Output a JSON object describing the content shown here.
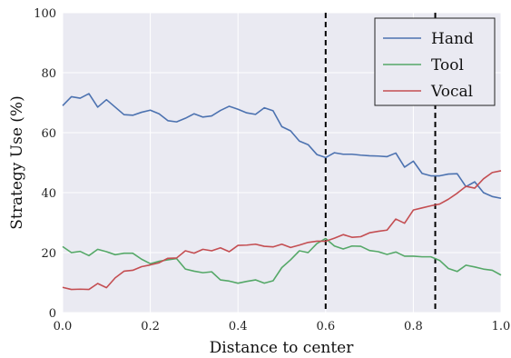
{
  "chart_data": {
    "type": "line",
    "title": "",
    "xlabel": "Distance to center",
    "ylabel": "Strategy Use (%)",
    "xlim": [
      0,
      1
    ],
    "ylim": [
      0,
      100
    ],
    "xticks": [
      "0.0",
      "0.2",
      "0.4",
      "0.6",
      "0.8",
      "1.0"
    ],
    "yticks": [
      "0",
      "20",
      "40",
      "60",
      "80",
      "100"
    ],
    "grid": true,
    "legend_position": "top-right",
    "background": "#eaeaf2",
    "vlines": [
      0.6,
      0.85
    ],
    "x": [
      0.0,
      0.02,
      0.04,
      0.06,
      0.08,
      0.1,
      0.12,
      0.14,
      0.16,
      0.18,
      0.2,
      0.22,
      0.24,
      0.26,
      0.28,
      0.3,
      0.32,
      0.34,
      0.36,
      0.38,
      0.4,
      0.42,
      0.44,
      0.46,
      0.48,
      0.5,
      0.52,
      0.54,
      0.56,
      0.58,
      0.6,
      0.62,
      0.64,
      0.66,
      0.68,
      0.7,
      0.72,
      0.74,
      0.76,
      0.78,
      0.8,
      0.82,
      0.84,
      0.86,
      0.88,
      0.9,
      0.92,
      0.94,
      0.96,
      0.98,
      1.0
    ],
    "series": [
      {
        "name": "Hand",
        "color": "#4c72b0",
        "values": [
          69,
          72,
          71.5,
          73,
          68.5,
          71,
          68.5,
          66,
          65.8,
          66.8,
          67.5,
          66.3,
          64,
          63.6,
          64.8,
          66.3,
          65.2,
          65.6,
          67.4,
          68.8,
          67.8,
          66.6,
          66.1,
          68.3,
          67.3,
          62,
          60.6,
          57.2,
          56,
          52.7,
          51.7,
          53.3,
          52.8,
          52.8,
          52.5,
          52.3,
          52.2,
          52,
          53.2,
          48.5,
          50.5,
          46.4,
          45.6,
          45.6,
          46.2,
          46.3,
          42,
          43.6,
          40,
          38.7,
          38.1
        ]
      },
      {
        "name": "Tool",
        "color": "#55a868",
        "values": [
          22,
          20,
          20.4,
          19,
          21.1,
          20.3,
          19.3,
          19.8,
          19.8,
          17.8,
          16.3,
          17.1,
          17.6,
          18,
          14.5,
          13.8,
          13.3,
          13.6,
          10.9,
          10.5,
          9.8,
          10.4,
          10.9,
          9.8,
          10.6,
          15,
          17.6,
          20.6,
          20,
          23,
          24.7,
          22.2,
          21.2,
          22.2,
          22.1,
          20.7,
          20.3,
          19.4,
          20.2,
          18.8,
          18.8,
          18.6,
          18.6,
          17.4,
          14.7,
          13.7,
          15.8,
          15.2,
          14.5,
          14.1,
          12.5
        ]
      },
      {
        "name": "Vocal",
        "color": "#c44e52",
        "values": [
          8.4,
          7.7,
          7.8,
          7.7,
          9.7,
          8.3,
          11.6,
          13.8,
          14.1,
          15.3,
          15.9,
          16.6,
          18.1,
          18.2,
          20.6,
          19.8,
          21.1,
          20.6,
          21.6,
          20.3,
          22.4,
          22.5,
          22.8,
          22.1,
          21.9,
          22.8,
          21.7,
          22.5,
          23.4,
          23.8,
          23.8,
          24.8,
          26,
          25.1,
          25.3,
          26.6,
          27.1,
          27.5,
          31.2,
          29.8,
          34.2,
          34.9,
          35.6,
          36.2,
          37.8,
          39.8,
          42.1,
          41.5,
          44.6,
          46.7,
          47.3
        ]
      }
    ]
  }
}
